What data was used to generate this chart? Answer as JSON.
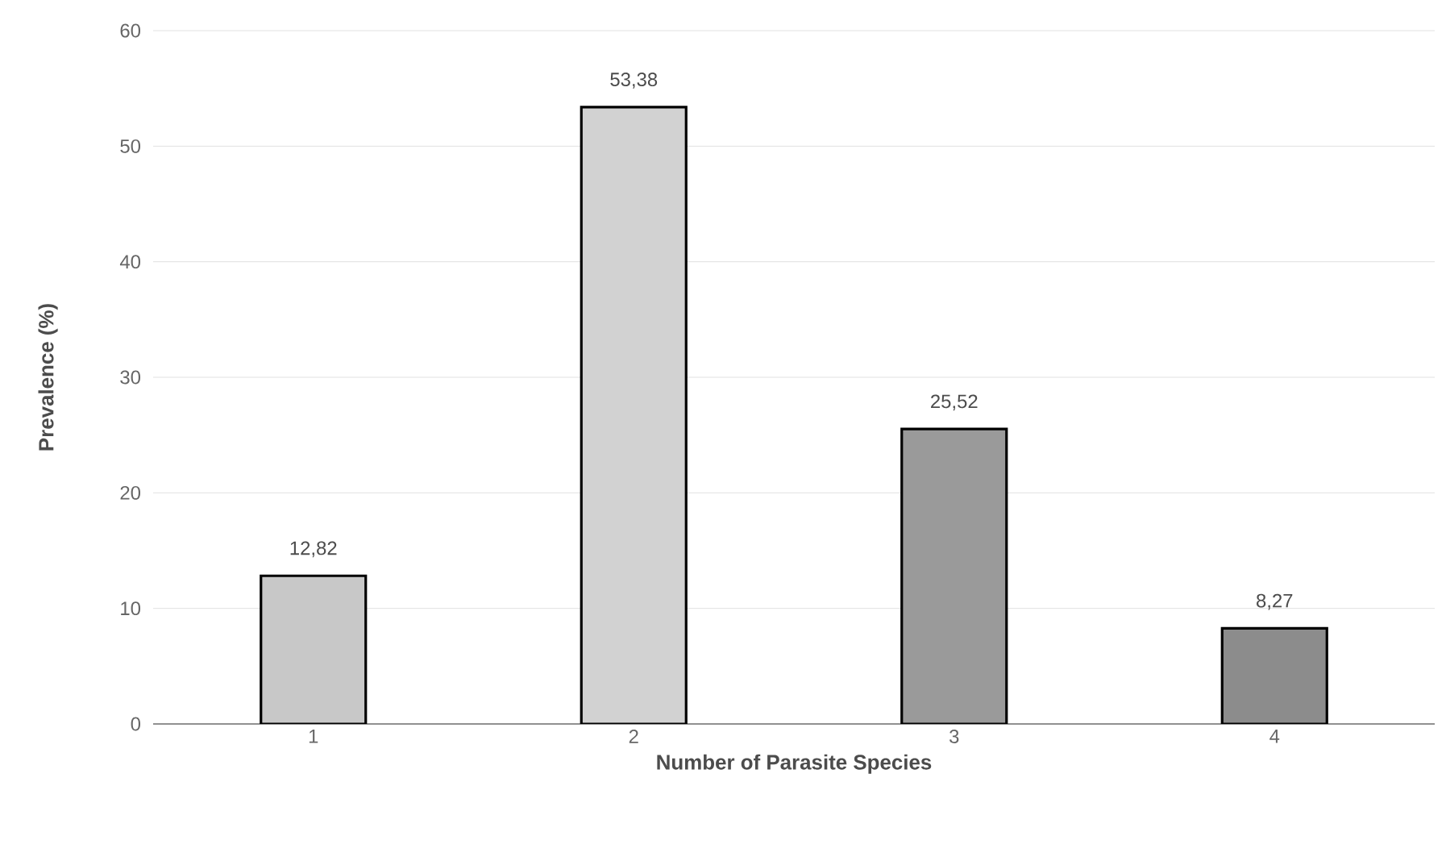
{
  "chart_data": {
    "type": "bar",
    "xlabel": "Number of Parasite Species",
    "ylabel": "Prevalence (%)",
    "categories": [
      "1",
      "2",
      "3",
      "4"
    ],
    "values": [
      12.82,
      53.38,
      25.52,
      8.27
    ],
    "value_labels": [
      "12,82",
      "53,38",
      "25,52",
      "8,27"
    ],
    "colors": [
      "#c8c8c8",
      "#d2d2d2",
      "#9a9a9a",
      "#8c8c8c"
    ],
    "ylim": [
      0,
      60
    ],
    "yticks": [
      0,
      10,
      20,
      30,
      40,
      50,
      60
    ],
    "grid": "y"
  }
}
